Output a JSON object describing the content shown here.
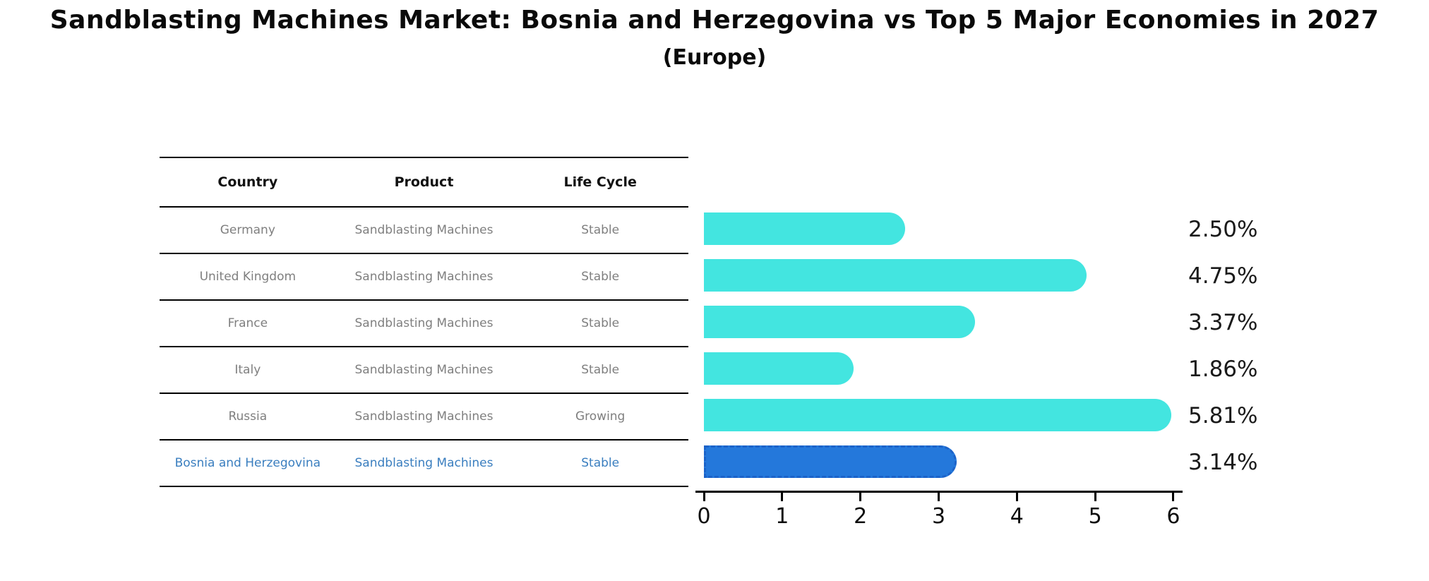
{
  "title": "Sandblasting Machines Market: Bosnia and Herzegovina vs Top 5 Major Economies in 2027",
  "subtitle": "(Europe)",
  "table": {
    "headers": [
      "Country",
      "Product",
      "Life Cycle"
    ]
  },
  "rows": [
    {
      "country": "Germany",
      "product": "Sandblasting Machines",
      "life_cycle": "Stable",
      "value": 2.5,
      "value_label": "2.50%",
      "highlight": false
    },
    {
      "country": "United Kingdom",
      "product": "Sandblasting Machines",
      "life_cycle": "Stable",
      "value": 4.75,
      "value_label": "4.75%",
      "highlight": false
    },
    {
      "country": "France",
      "product": "Sandblasting Machines",
      "life_cycle": "Stable",
      "value": 3.37,
      "value_label": "3.37%",
      "highlight": false
    },
    {
      "country": "Italy",
      "product": "Sandblasting Machines",
      "life_cycle": "Stable",
      "value": 1.86,
      "value_label": "1.86%",
      "highlight": false
    },
    {
      "country": "Russia",
      "product": "Sandblasting Machines",
      "life_cycle": "Growing",
      "value": 5.81,
      "value_label": "5.81%",
      "highlight": false
    },
    {
      "country": "Bosnia and Herzegovina",
      "product": "Sandblasting Machines",
      "life_cycle": "Stable",
      "value": 3.14,
      "value_label": "3.14%",
      "highlight": true
    }
  ],
  "chart_data": {
    "type": "bar",
    "orientation": "horizontal",
    "title": "Sandblasting Machines Market: Bosnia and Herzegovina vs Top 5 Major Economies in 2027 (Europe)",
    "categories": [
      "Germany",
      "United Kingdom",
      "France",
      "Italy",
      "Russia",
      "Bosnia and Herzegovina"
    ],
    "values": [
      2.5,
      4.75,
      3.37,
      1.86,
      5.81,
      3.14
    ],
    "value_labels": [
      "2.50%",
      "4.75%",
      "3.37%",
      "1.86%",
      "5.81%",
      "3.14%"
    ],
    "xlabel": "",
    "ylabel": "",
    "xlim": [
      0,
      6
    ],
    "xticks": [
      "0",
      "1",
      "2",
      "3",
      "4",
      "5",
      "6"
    ],
    "grid": false,
    "legend": null,
    "highlight_index": 5
  },
  "colors": {
    "bar": "#43e5e0",
    "highlight_bar": "#2478db",
    "highlight_border": "#1c63c9",
    "highlight_text": "#3a7ebf",
    "row_text": "#7f7f7f",
    "header_text": "#111111",
    "axis": "#000000"
  }
}
